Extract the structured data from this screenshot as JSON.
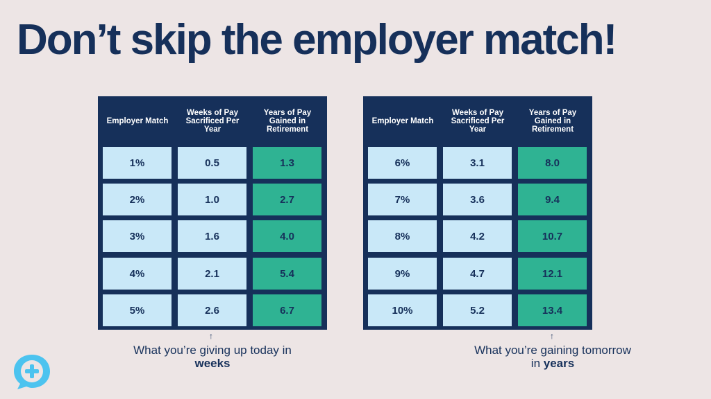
{
  "title": "Don’t skip the employer match!",
  "colors": {
    "background": "#ede5e5",
    "navy": "#16305a",
    "light_blue": "#c9e8f8",
    "teal": "#2fb393",
    "logo": "#4cc3ef"
  },
  "headers": [
    "Employer Match",
    "Weeks of Pay Sacrificed Per Year",
    "Years of Pay Gained in Retirement"
  ],
  "tables": [
    {
      "rows": [
        [
          "1%",
          "0.5",
          "1.3"
        ],
        [
          "2%",
          "1.0",
          "2.7"
        ],
        [
          "3%",
          "1.6",
          "4.0"
        ],
        [
          "4%",
          "2.1",
          "5.4"
        ],
        [
          "5%",
          "2.6",
          "6.7"
        ]
      ]
    },
    {
      "rows": [
        [
          "6%",
          "3.1",
          "8.0"
        ],
        [
          "7%",
          "3.6",
          "9.4"
        ],
        [
          "8%",
          "4.2",
          "10.7"
        ],
        [
          "9%",
          "4.7",
          "12.1"
        ],
        [
          "10%",
          "5.2",
          "13.4"
        ]
      ]
    }
  ],
  "notes": [
    {
      "text": "What you’re giving up today in ",
      "bold": "weeks"
    },
    {
      "text": "What you’re gaining tomorrow in ",
      "bold": "years"
    }
  ],
  "logo_icon": "chat-bubble-plus-icon"
}
